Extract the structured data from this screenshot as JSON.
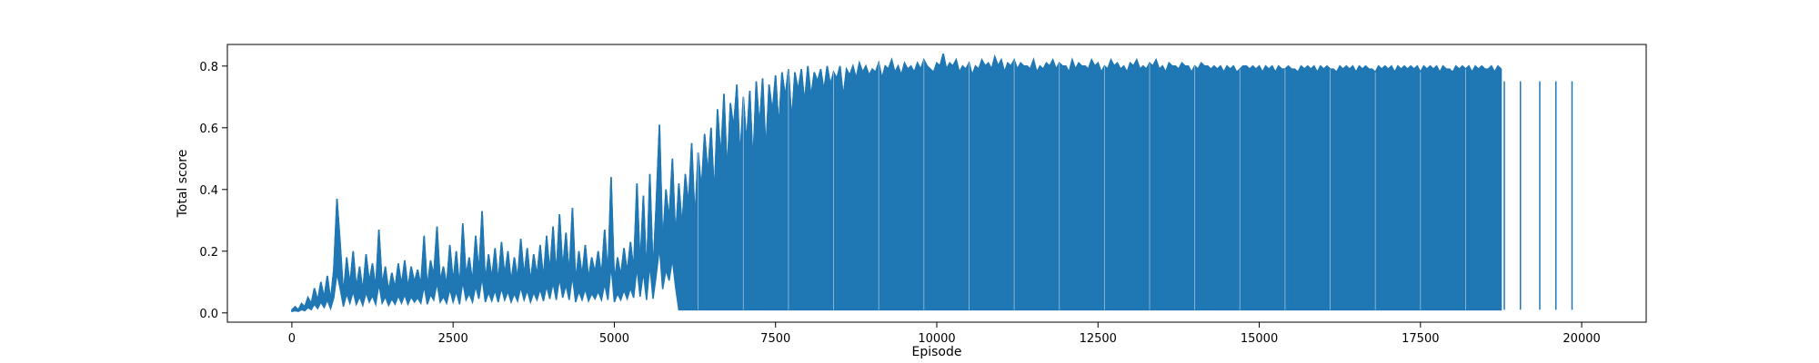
{
  "chart_data": {
    "type": "line",
    "title": "",
    "xlabel": "Episode",
    "ylabel": "Total score",
    "xlim": [
      -1000,
      21000
    ],
    "ylim": [
      -0.03,
      0.87
    ],
    "grid": false,
    "legend": "none",
    "series_color": "#1f77b4",
    "x_ticks": [
      {
        "value": 0,
        "label": "0"
      },
      {
        "value": 2500,
        "label": "2500"
      },
      {
        "value": 5000,
        "label": "5000"
      },
      {
        "value": 7500,
        "label": "7500"
      },
      {
        "value": 10000,
        "label": "10000"
      },
      {
        "value": 12500,
        "label": "12500"
      },
      {
        "value": 15000,
        "label": "15000"
      },
      {
        "value": 17500,
        "label": "17500"
      },
      {
        "value": 20000,
        "label": "20000"
      }
    ],
    "y_ticks": [
      {
        "value": 0.0,
        "label": "0.0"
      },
      {
        "value": 0.2,
        "label": "0.2"
      },
      {
        "value": 0.4,
        "label": "0.4"
      },
      {
        "value": 0.6,
        "label": "0.6"
      },
      {
        "value": 0.8,
        "label": "0.8"
      }
    ],
    "series": [
      {
        "name": "",
        "x_start": 0,
        "x_step": 50,
        "values": [
          0.01,
          0.02,
          0.01,
          0.03,
          0.02,
          0.05,
          0.03,
          0.08,
          0.04,
          0.1,
          0.05,
          0.12,
          0.04,
          0.14,
          0.37,
          0.22,
          0.06,
          0.18,
          0.09,
          0.2,
          0.08,
          0.15,
          0.07,
          0.19,
          0.1,
          0.16,
          0.08,
          0.27,
          0.09,
          0.15,
          0.07,
          0.13,
          0.08,
          0.16,
          0.09,
          0.17,
          0.08,
          0.15,
          0.1,
          0.14,
          0.09,
          0.25,
          0.08,
          0.17,
          0.12,
          0.28,
          0.1,
          0.15,
          0.09,
          0.22,
          0.1,
          0.2,
          0.08,
          0.29,
          0.12,
          0.18,
          0.1,
          0.25,
          0.13,
          0.33,
          0.1,
          0.19,
          0.11,
          0.21,
          0.1,
          0.23,
          0.12,
          0.2,
          0.1,
          0.18,
          0.11,
          0.24,
          0.12,
          0.21,
          0.1,
          0.19,
          0.12,
          0.22,
          0.11,
          0.25,
          0.13,
          0.28,
          0.12,
          0.32,
          0.14,
          0.26,
          0.12,
          0.34,
          0.1,
          0.2,
          0.12,
          0.22,
          0.11,
          0.18,
          0.13,
          0.2,
          0.12,
          0.27,
          0.12,
          0.44,
          0.1,
          0.18,
          0.12,
          0.21,
          0.13,
          0.23,
          0.14,
          0.42,
          0.15,
          0.38,
          0.12,
          0.45,
          0.13,
          0.35,
          0.61,
          0.22,
          0.4,
          0.3,
          0.5,
          0.24,
          0.42,
          0.28,
          0.45,
          0.35,
          0.55,
          0.3,
          0.52,
          0.4,
          0.58,
          0.45,
          0.6,
          0.38,
          0.66,
          0.5,
          0.71,
          0.45,
          0.68,
          0.6,
          0.74,
          0.5,
          0.7,
          0.55,
          0.72,
          0.48,
          0.75,
          0.6,
          0.76,
          0.52,
          0.74,
          0.65,
          0.77,
          0.6,
          0.78,
          0.7,
          0.79,
          0.62,
          0.78,
          0.72,
          0.79,
          0.68,
          0.8,
          0.7,
          0.78,
          0.75,
          0.79,
          0.72,
          0.8,
          0.74,
          0.78,
          0.76,
          0.8,
          0.7,
          0.79,
          0.77,
          0.8,
          0.76,
          0.81,
          0.78,
          0.8,
          0.77,
          0.79,
          0.78,
          0.81,
          0.76,
          0.8,
          0.79,
          0.82,
          0.78,
          0.8,
          0.77,
          0.81,
          0.79,
          0.8,
          0.78,
          0.81,
          0.79,
          0.82,
          0.8,
          0.79,
          0.78,
          0.81,
          0.8,
          0.84,
          0.79,
          0.81,
          0.8,
          0.82,
          0.78,
          0.8,
          0.79,
          0.81,
          0.77,
          0.8,
          0.79,
          0.82,
          0.8,
          0.81,
          0.79,
          0.83,
          0.8,
          0.82,
          0.78,
          0.81,
          0.8,
          0.82,
          0.79,
          0.81,
          0.8,
          0.8,
          0.79,
          0.82,
          0.78,
          0.8,
          0.79,
          0.81,
          0.8,
          0.82,
          0.79,
          0.81,
          0.8,
          0.8,
          0.78,
          0.82,
          0.79,
          0.81,
          0.8,
          0.8,
          0.79,
          0.82,
          0.8,
          0.81,
          0.78,
          0.8,
          0.79,
          0.82,
          0.8,
          0.81,
          0.79,
          0.8,
          0.78,
          0.81,
          0.8,
          0.82,
          0.79,
          0.8,
          0.79,
          0.81,
          0.8,
          0.82,
          0.79,
          0.8,
          0.78,
          0.81,
          0.8,
          0.8,
          0.79,
          0.81,
          0.8,
          0.8,
          0.78,
          0.8,
          0.79,
          0.81,
          0.8,
          0.8,
          0.79,
          0.8,
          0.79,
          0.8,
          0.78,
          0.8,
          0.79,
          0.8,
          0.78,
          0.79,
          0.8,
          0.8,
          0.79,
          0.8,
          0.79,
          0.8,
          0.78,
          0.8,
          0.79,
          0.8,
          0.78,
          0.8,
          0.79,
          0.79,
          0.8,
          0.79,
          0.79,
          0.78,
          0.8,
          0.79,
          0.8,
          0.79,
          0.8,
          0.78,
          0.8,
          0.79,
          0.8,
          0.79,
          0.79,
          0.78,
          0.8,
          0.79,
          0.8,
          0.79,
          0.8,
          0.78,
          0.8,
          0.79,
          0.8,
          0.79,
          0.79,
          0.78,
          0.8,
          0.79,
          0.8,
          0.79,
          0.8,
          0.78,
          0.8,
          0.79,
          0.8,
          0.79,
          0.8,
          0.79,
          0.8,
          0.78,
          0.8,
          0.79,
          0.8,
          0.79,
          0.8,
          0.78,
          0.8,
          0.79,
          0.79,
          0.78,
          0.8,
          0.79,
          0.8,
          0.79,
          0.8,
          0.78,
          0.8,
          0.79,
          0.8,
          0.79,
          0.79,
          0.8,
          0.78,
          0.8,
          0.79
        ]
      }
    ],
    "envelope": {
      "low_baseline": [
        {
          "x": 0,
          "y": 0.005
        },
        {
          "x": 6000,
          "y": 0.01
        },
        {
          "x": 20000,
          "y": 0.01
        }
      ],
      "deep_drops_x": [
        6050,
        6300,
        6650,
        7000,
        7350,
        7700,
        8050,
        8350,
        8650,
        8900,
        9200,
        9450,
        9750,
        10050,
        10400,
        10600,
        10850,
        11100,
        11400,
        11650,
        11950,
        12250,
        12500,
        12800,
        13000,
        13300,
        13500,
        13800,
        14050,
        14350,
        14700,
        14950,
        15250,
        15500,
        15800,
        16050,
        16300,
        16550,
        16850,
        17150,
        17400,
        17700,
        17950,
        18250,
        18500,
        18800,
        19050,
        19350,
        19600,
        19850
      ]
    }
  }
}
